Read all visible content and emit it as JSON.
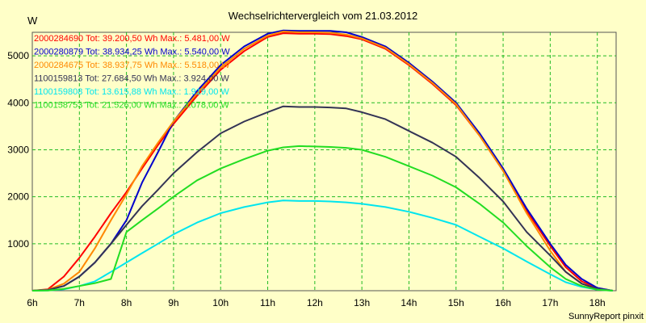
{
  "chart_data": {
    "type": "line",
    "title": "Wechselrichtervergleich vom 21.03.2012",
    "ylabel": "W",
    "xlabel": "",
    "credit": "SunnyReport pinxit",
    "xlim": [
      6,
      18.4
    ],
    "ylim": [
      0,
      5500
    ],
    "x_ticks": [
      6,
      7,
      8,
      9,
      10,
      11,
      12,
      13,
      14,
      15,
      16,
      17,
      18
    ],
    "x_tick_labels": [
      "6h",
      "7h",
      "8h",
      "9h",
      "10h",
      "11h",
      "12h",
      "13h",
      "14h",
      "15h",
      "16h",
      "17h",
      "18h"
    ],
    "y_ticks": [
      1000,
      2000,
      3000,
      4000,
      5000
    ],
    "y_tick_labels": [
      "1000",
      "2000",
      "3000",
      "4000",
      "5000"
    ],
    "grid": true,
    "legend_position": "top-left",
    "series": [
      {
        "name": "2000284690",
        "legend": "2000284690 Tot: 39.200,50 Wh Max.: 5.481,00 W",
        "color": "#ff0000",
        "x": [
          6,
          6.33,
          6.67,
          7,
          7.33,
          7.67,
          8,
          8.33,
          8.67,
          9,
          9.5,
          10,
          10.5,
          11,
          11.33,
          11.67,
          12,
          12.33,
          12.67,
          13,
          13.5,
          14,
          14.5,
          15,
          15.5,
          16,
          16.5,
          17,
          17.33,
          17.67,
          18,
          18.33
        ],
        "y": [
          0,
          30,
          300,
          700,
          1150,
          1650,
          2100,
          2600,
          3100,
          3550,
          4150,
          4700,
          5100,
          5400,
          5481,
          5470,
          5470,
          5460,
          5420,
          5350,
          5150,
          4800,
          4400,
          3950,
          3300,
          2550,
          1700,
          950,
          500,
          200,
          50,
          0
        ]
      },
      {
        "name": "2000280879",
        "legend": "2000280879 Tot: 38.934,25 Wh Max.: 5.540,00 W",
        "color": "#0000cc",
        "x": [
          6,
          6.33,
          6.67,
          7,
          7.33,
          7.67,
          8,
          8.33,
          8.67,
          9,
          9.5,
          10,
          10.5,
          11,
          11.33,
          11.67,
          12,
          12.33,
          12.67,
          13,
          13.5,
          14,
          14.5,
          15,
          15.5,
          16,
          16.5,
          17,
          17.33,
          17.67,
          18,
          18.33
        ],
        "y": [
          0,
          20,
          100,
          300,
          600,
          1000,
          1500,
          2300,
          2950,
          3600,
          4250,
          4800,
          5200,
          5470,
          5540,
          5530,
          5530,
          5530,
          5500,
          5400,
          5200,
          4850,
          4450,
          4000,
          3350,
          2600,
          1750,
          1000,
          550,
          250,
          60,
          0
        ]
      },
      {
        "name": "2000284675",
        "legend": "2000284675 Tot: 38.937,75 Wh Max.: 5.518,00 W",
        "color": "#ff8800",
        "x": [
          6,
          6.33,
          6.67,
          7,
          7.33,
          7.67,
          8,
          8.33,
          8.67,
          9,
          9.5,
          10,
          10.5,
          11,
          11.33,
          11.67,
          12,
          12.33,
          12.67,
          13,
          13.5,
          14,
          14.5,
          15,
          15.5,
          16,
          16.5,
          17,
          17.33,
          17.67,
          18,
          18.33
        ],
        "y": [
          0,
          20,
          150,
          400,
          900,
          1500,
          2050,
          2650,
          3150,
          3600,
          4200,
          4750,
          5150,
          5430,
          5518,
          5500,
          5500,
          5490,
          5450,
          5370,
          5170,
          4820,
          4420,
          3970,
          3300,
          2550,
          1650,
          850,
          400,
          150,
          40,
          0
        ]
      },
      {
        "name": "1100159813",
        "legend": "1100159813 Tot: 27.684,50 Wh Max.: 3.924,00 W",
        "color": "#333355",
        "x": [
          6,
          6.33,
          6.67,
          7,
          7.33,
          7.67,
          8,
          8.33,
          8.67,
          9,
          9.5,
          10,
          10.5,
          11,
          11.33,
          11.67,
          12,
          12.33,
          12.67,
          13,
          13.5,
          14,
          14.5,
          15,
          15.5,
          16,
          16.5,
          17,
          17.33,
          17.67,
          18,
          18.33
        ],
        "y": [
          0,
          15,
          100,
          300,
          600,
          1000,
          1400,
          1800,
          2150,
          2500,
          2950,
          3350,
          3600,
          3800,
          3924,
          3910,
          3910,
          3900,
          3880,
          3800,
          3650,
          3400,
          3150,
          2850,
          2400,
          1900,
          1250,
          750,
          400,
          150,
          40,
          0
        ]
      },
      {
        "name": "1100159808",
        "legend": "1100159808 Tot: 13.615,88 Wh Max.: 1.919,00 W",
        "color": "#00e5ee",
        "x": [
          6,
          6.33,
          6.67,
          7,
          7.33,
          7.67,
          8,
          8.33,
          8.67,
          9,
          9.5,
          10,
          10.5,
          11,
          11.33,
          11.67,
          12,
          12.33,
          12.67,
          13,
          13.5,
          14,
          14.5,
          15,
          15.5,
          16,
          16.5,
          17,
          17.33,
          17.67,
          18,
          18.33
        ],
        "y": [
          0,
          5,
          30,
          100,
          200,
          400,
          600,
          800,
          1000,
          1200,
          1450,
          1650,
          1780,
          1880,
          1919,
          1910,
          1910,
          1900,
          1880,
          1850,
          1780,
          1680,
          1550,
          1400,
          1150,
          900,
          620,
          350,
          180,
          80,
          20,
          0
        ]
      },
      {
        "name": "1100158753",
        "legend": "1100158753 Tot: 21.526,00 Wh Max.: 3.078,00 W",
        "color": "#22dd22",
        "x": [
          6,
          6.33,
          6.67,
          7,
          7.33,
          7.67,
          8,
          8.33,
          8.67,
          9,
          9.5,
          10,
          10.5,
          11,
          11.33,
          11.67,
          12,
          12.33,
          12.67,
          13,
          13.5,
          14,
          14.5,
          15,
          15.5,
          16,
          16.5,
          17,
          17.33,
          17.67,
          18,
          18.33
        ],
        "y": [
          0,
          5,
          40,
          100,
          160,
          250,
          1250,
          1500,
          1750,
          2000,
          2350,
          2600,
          2800,
          2980,
          3050,
          3078,
          3070,
          3060,
          3040,
          3000,
          2850,
          2650,
          2450,
          2200,
          1850,
          1450,
          950,
          500,
          250,
          100,
          20,
          0
        ]
      }
    ]
  }
}
